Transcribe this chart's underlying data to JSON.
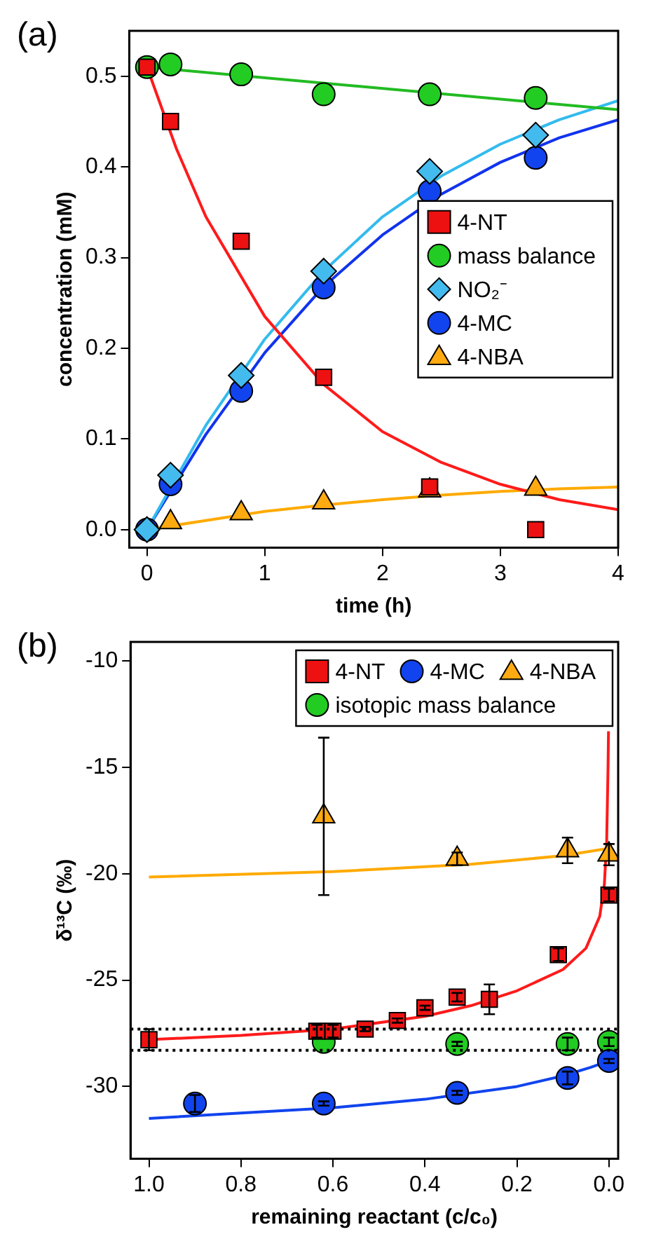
{
  "chart_data": [
    {
      "type": "scatter",
      "annotations": [
        "(a)"
      ],
      "xlabel": "time (h)",
      "ylabel": "concentration (mM)",
      "xlim": [
        -0.15,
        4
      ],
      "xticks": [
        0,
        1,
        2,
        3,
        4
      ],
      "ylim": [
        -0.02,
        0.55
      ],
      "yticks": [
        {
          "value": 0,
          "label": "0.0"
        },
        {
          "value": 0.1,
          "label": "0.1"
        },
        {
          "value": 0.2,
          "label": "0.2"
        },
        {
          "value": 0.3,
          "label": "0.3"
        },
        {
          "value": 0.4,
          "label": "0.4"
        },
        {
          "value": 0.5,
          "label": "0.5"
        }
      ],
      "grid": false,
      "legend": "right",
      "series": [
        {
          "type": "line",
          "color": "#ff1a1a",
          "x": [
            0,
            0.25,
            0.5,
            1,
            1.5,
            2,
            2.5,
            3,
            3.5,
            4
          ],
          "values": [
            0.51,
            0.42,
            0.345,
            0.235,
            0.16,
            0.108,
            0.074,
            0.05,
            0.033,
            0.022
          ]
        },
        {
          "type": "line",
          "color": "#22bb22",
          "x": [
            0,
            4
          ],
          "values": [
            0.51,
            0.463
          ]
        },
        {
          "type": "line",
          "color": "#33bbee",
          "x": [
            0,
            0.5,
            1,
            1.5,
            2,
            2.5,
            3,
            3.5,
            4
          ],
          "values": [
            0,
            0.115,
            0.21,
            0.285,
            0.345,
            0.39,
            0.425,
            0.452,
            0.473
          ]
        },
        {
          "type": "line",
          "color": "#1133ee",
          "x": [
            0,
            0.5,
            1,
            1.5,
            2,
            2.5,
            3,
            3.5,
            4
          ],
          "values": [
            0,
            0.105,
            0.195,
            0.268,
            0.325,
            0.37,
            0.405,
            0.432,
            0.452
          ]
        },
        {
          "type": "line",
          "color": "#ffaa00",
          "x": [
            0,
            0.5,
            1,
            1.5,
            2,
            2.5,
            3,
            3.5,
            4
          ],
          "values": [
            0,
            0.01,
            0.02,
            0.027,
            0.033,
            0.038,
            0.042,
            0.045,
            0.047
          ]
        },
        {
          "type": "scatter",
          "name": "4-NT",
          "marker": "square",
          "color": "#ee1111",
          "x": [
            0,
            0.2,
            0.8,
            1.5,
            2.4,
            3.3
          ],
          "values": [
            0.51,
            0.45,
            0.318,
            0.168,
            0.047,
            0.0
          ]
        },
        {
          "type": "scatter",
          "name": "mass balance",
          "marker": "circle",
          "color": "#22cc22",
          "x": [
            0,
            0.2,
            0.8,
            1.5,
            2.4,
            3.3
          ],
          "values": [
            0.51,
            0.513,
            0.502,
            0.48,
            0.48,
            0.476
          ]
        },
        {
          "type": "scatter",
          "name": "NO₂⁻",
          "marker": "diamond",
          "color": "#44bbee",
          "x": [
            0,
            0.2,
            0.8,
            1.5,
            2.4,
            3.3
          ],
          "values": [
            0,
            0.06,
            0.17,
            0.285,
            0.395,
            0.435
          ]
        },
        {
          "type": "scatter",
          "name": "4-MC",
          "marker": "circle",
          "color": "#1144ee",
          "x": [
            0,
            0.2,
            0.8,
            1.5,
            2.4,
            3.3
          ],
          "values": [
            0,
            0.05,
            0.153,
            0.267,
            0.373,
            0.41
          ]
        },
        {
          "type": "scatter",
          "name": "4-NBA",
          "marker": "triangle",
          "color": "#ffaa11",
          "x": [
            0.2,
            0.8,
            1.5,
            2.4,
            3.3
          ],
          "values": [
            0.008,
            0.018,
            0.03,
            0.043,
            0.045
          ]
        }
      ]
    },
    {
      "type": "scatter",
      "annotations": [
        "(b)"
      ],
      "xlabel": "remaining reactant (c/c₀)",
      "ylabel": "δ¹³C (‰)",
      "xlim": [
        1.04,
        -0.02
      ],
      "xticks": [
        {
          "value": 1,
          "label": "1.0"
        },
        {
          "value": 0.8,
          "label": "0.8"
        },
        {
          "value": 0.6,
          "label": "0.6"
        },
        {
          "value": 0.4,
          "label": "0.4"
        },
        {
          "value": 0.2,
          "label": "0.2"
        },
        {
          "value": 0,
          "label": "0.0"
        }
      ],
      "ylim": [
        -33.4,
        -9.1
      ],
      "yticks": [
        -30,
        -25,
        -20,
        -15,
        -10
      ],
      "grid": false,
      "legend": "top right",
      "ref_lines": [
        {
          "axis": "y",
          "value": -27.3,
          "color": "#000000",
          "line_style": "dotted"
        },
        {
          "axis": "y",
          "value": -28.3,
          "color": "#000000",
          "line_style": "dotted"
        }
      ],
      "series": [
        {
          "type": "line",
          "color": "#ffaa00",
          "x": [
            1,
            0.6,
            0.3,
            0.1,
            0
          ],
          "values": [
            -20.15,
            -19.9,
            -19.55,
            -19.15,
            -18.8
          ]
        },
        {
          "type": "line",
          "color": "#ff1a1a",
          "x": [
            1,
            0.8,
            0.6,
            0.4,
            0.3,
            0.2,
            0.1,
            0.05,
            0.02,
            0.01,
            0.005,
            0.002,
            0.001
          ],
          "values": [
            -27.8,
            -27.6,
            -27.3,
            -26.7,
            -26.2,
            -25.5,
            -24.5,
            -23.5,
            -22,
            -20.5,
            -18.5,
            -15,
            -13.3
          ]
        },
        {
          "type": "line",
          "color": "#1144ee",
          "x": [
            1,
            0.8,
            0.6,
            0.4,
            0.2,
            0.1,
            0.04,
            0
          ],
          "values": [
            -31.5,
            -31.25,
            -31.0,
            -30.6,
            -30.0,
            -29.5,
            -29.1,
            -28.8
          ]
        },
        {
          "type": "scatter",
          "name": "4-NT",
          "marker": "square",
          "color": "#ee1111",
          "x": [
            1.0,
            0.635,
            0.6,
            0.53,
            0.46,
            0.4,
            0.33,
            0.26,
            0.11,
            0.0
          ],
          "values": [
            -27.8,
            -27.4,
            -27.4,
            -27.3,
            -26.9,
            -26.3,
            -25.8,
            -25.9,
            -23.8,
            -21.0
          ],
          "errors": [
            0.5,
            0.3,
            0.3,
            0.1,
            0.1,
            0.1,
            0.2,
            0.7,
            0.3,
            0.3
          ]
        },
        {
          "type": "scatter",
          "name": "4-MC",
          "marker": "circle",
          "color": "#1144ee",
          "x": [
            0.9,
            0.62,
            0.33,
            0.09,
            0.0
          ],
          "values": [
            -30.8,
            -30.8,
            -30.3,
            -29.6,
            -28.8
          ],
          "errors": [
            0.4,
            0.1,
            0.1,
            0.3,
            0.1
          ]
        },
        {
          "type": "scatter",
          "name": "4-NBA",
          "marker": "triangle",
          "color": "#ffaa11",
          "x": [
            0.62,
            0.33,
            0.09,
            0.0
          ],
          "values": [
            -17.3,
            -19.3,
            -18.9,
            -19.1
          ],
          "errors": [
            3.7,
            0.3,
            0.6,
            0.5
          ]
        },
        {
          "type": "scatter",
          "name": "isotopic mass balance",
          "marker": "circle",
          "color": "#22cc22",
          "x": [
            0.62,
            0.33,
            0.09,
            0.0
          ],
          "values": [
            -27.9,
            -28.0,
            -28.0,
            -27.9
          ],
          "errors": [
            null,
            0.1,
            0.3,
            0.2
          ]
        }
      ]
    }
  ]
}
